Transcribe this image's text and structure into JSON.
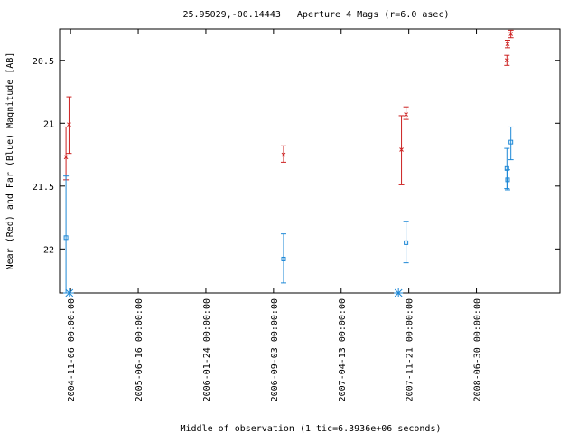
{
  "chart_data": {
    "type": "scatter",
    "title": "25.95029,-00.14443   Aperture 4 Mags (r=6.0 asec)",
    "xlabel": "Middle of observation (1 tic=6.3936e+06 seconds)",
    "ylabel": "Near (Red) and Far (Blue) Magnitude [AB]",
    "y_inverted": true,
    "ylim": [
      22.35,
      20.25
    ],
    "xlim": [
      "2004-10-01",
      "2009-03-31"
    ],
    "y_ticks": [
      "20.5",
      "21",
      "21.5",
      "22"
    ],
    "y_tick_values": [
      20.5,
      21.0,
      21.5,
      22.0
    ],
    "x_ticks": [
      {
        "label": "2004-11-06 00:00:00",
        "date": "2004-11-06"
      },
      {
        "label": "2005-06-16 00:00:00",
        "date": "2005-06-16"
      },
      {
        "label": "2006-01-24 00:00:00",
        "date": "2006-01-24"
      },
      {
        "label": "2006-09-03 00:00:00",
        "date": "2006-09-03"
      },
      {
        "label": "2007-04-13 00:00:00",
        "date": "2007-04-13"
      },
      {
        "label": "2007-11-21 00:00:00",
        "date": "2007-11-21"
      },
      {
        "label": "2008-06-30 00:00:00",
        "date": "2008-06-30"
      }
    ],
    "grid": false,
    "series": [
      {
        "color": "#cc2222",
        "marker": "x",
        "points": [
          {
            "x": "2004-10-22",
            "y": 21.27,
            "yerr": [
              21.45,
              21.03
            ]
          },
          {
            "x": "2004-11-01",
            "y": 21.01,
            "yerr": [
              21.24,
              20.79
            ]
          },
          {
            "x": "2006-10-06",
            "y": 21.25,
            "yerr": [
              21.31,
              21.18
            ]
          },
          {
            "x": "2007-10-28",
            "y": 21.21,
            "yerr": [
              21.49,
              20.94
            ]
          },
          {
            "x": "2007-11-12",
            "y": 20.93,
            "yerr": [
              20.97,
              20.87
            ]
          },
          {
            "x": "2008-10-08",
            "y": 20.5,
            "yerr": [
              20.54,
              20.46
            ]
          },
          {
            "x": "2008-10-10",
            "y": 20.37,
            "yerr": [
              20.4,
              20.34
            ]
          },
          {
            "x": "2008-10-21",
            "y": 20.29,
            "yerr": [
              20.32,
              20.26
            ]
          }
        ]
      },
      {
        "color": "#1e88d6",
        "marker": "square",
        "points": [
          {
            "x": "2004-10-22",
            "y": 21.91,
            "yerr": [
              22.35,
              21.42
            ]
          },
          {
            "x": "2006-10-06",
            "y": 22.08,
            "yerr": [
              22.27,
              21.88
            ]
          },
          {
            "x": "2007-11-12",
            "y": 21.95,
            "yerr": [
              22.11,
              21.78
            ]
          },
          {
            "x": "2008-10-08",
            "y": 21.36,
            "yerr": [
              21.52,
              21.2
            ]
          },
          {
            "x": "2008-10-10",
            "y": 21.45,
            "yerr": [
              21.53,
              21.37
            ]
          },
          {
            "x": "2008-10-21",
            "y": 21.15,
            "yerr": [
              21.29,
              21.03
            ]
          }
        ],
        "limits": [
          {
            "x": "2004-11-02",
            "y": 22.35
          },
          {
            "x": "2007-10-18",
            "y": 22.35
          }
        ]
      }
    ]
  }
}
